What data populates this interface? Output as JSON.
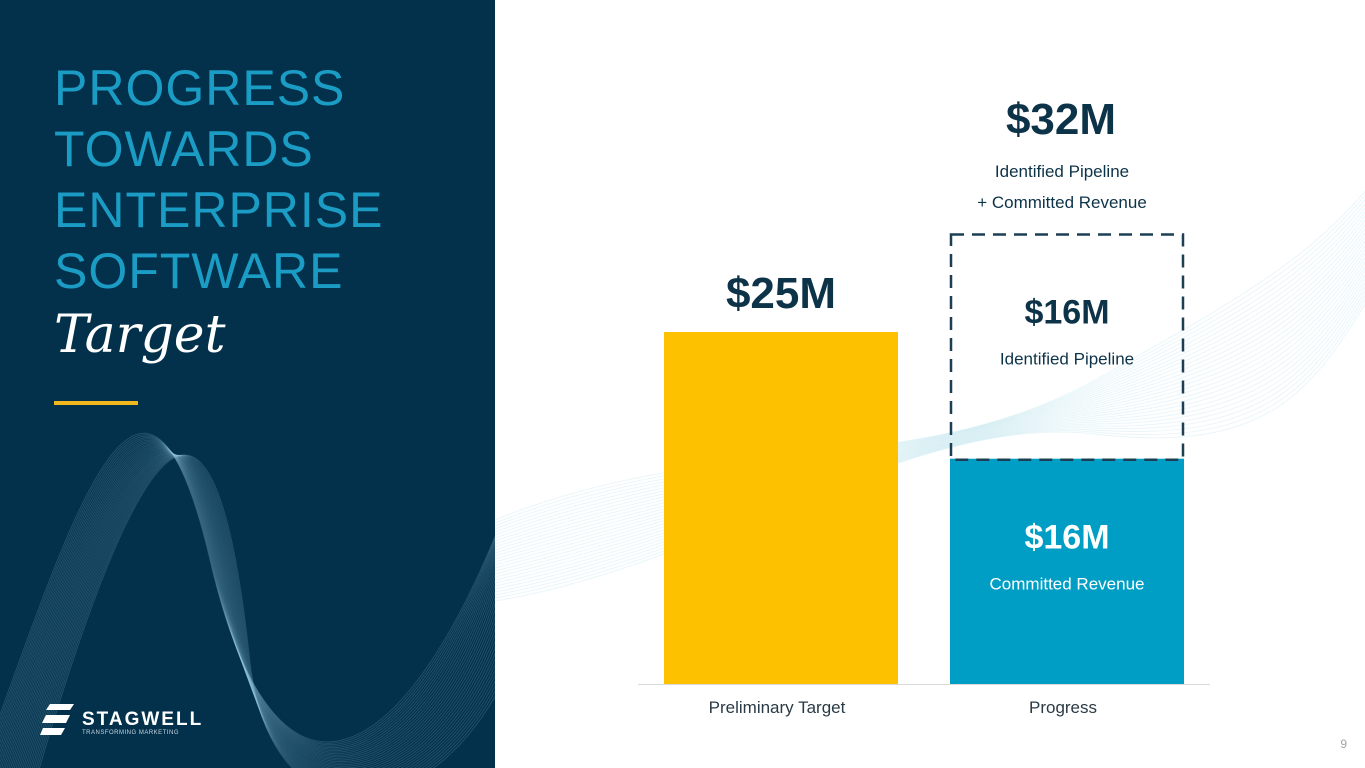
{
  "slide": {
    "title_lines": [
      "PROGRESS",
      "TOWARDS",
      "ENTERPRISE",
      "SOFTWARE"
    ],
    "title_italic": "Target",
    "page_number": "9"
  },
  "logo": {
    "word": "STAGWELL",
    "tagline": "TRANSFORMING MARKETING"
  },
  "colors": {
    "panel": "#03314b",
    "title": "#1b9cc4",
    "accent_rule": "#f0b81c",
    "target_bar": "#fdc100",
    "committed_bar": "#009ec4",
    "dashed_box": "#1c3f55",
    "value_text": "#0d3349"
  },
  "chart_data": {
    "type": "bar",
    "categories": [
      "Preliminary Target",
      "Progress"
    ],
    "ylim": [
      0,
      32
    ],
    "bars": [
      {
        "category": "Preliminary Target",
        "segments": [
          {
            "value": 25,
            "label": "$25M",
            "sublabel": "",
            "style": "solid",
            "color": "#fdc100"
          }
        ]
      },
      {
        "category": "Progress",
        "segments": [
          {
            "value": 16,
            "label": "$16M",
            "sublabel": "Committed Revenue",
            "style": "solid",
            "color": "#009ec4"
          },
          {
            "value": 16,
            "label": "$16M",
            "sublabel": "Identified Pipeline",
            "style": "dashed",
            "color": "#1c3f55"
          }
        ],
        "total_label": "$32M",
        "total_sublabels": [
          "Identified Pipeline",
          "+ Committed Revenue"
        ]
      }
    ]
  }
}
